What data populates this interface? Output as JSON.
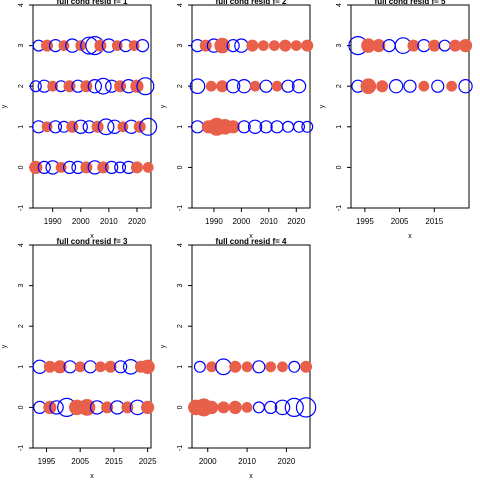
{
  "colors": {
    "positive": "#e8604a",
    "negative": "#0000ff",
    "axis": "#000000"
  },
  "chart_data": [
    {
      "type": "scatter",
      "title": "full cond resid f= 1",
      "xlabel": "x",
      "ylabel": "y",
      "xlim": [
        1983,
        2025
      ],
      "ylim": [
        -1,
        4
      ],
      "xticks": [
        1990,
        2000,
        2010,
        2020
      ],
      "yticks": [
        -1,
        0,
        1,
        2,
        3,
        4
      ],
      "series": [
        {
          "y": 3,
          "x": [
            1985,
            1988,
            1991,
            1994,
            1997,
            2000,
            2003,
            2005,
            2007,
            2010,
            2013,
            2016,
            2019,
            2022
          ],
          "resid": [
            -0.4,
            0.5,
            -0.5,
            0.4,
            -0.6,
            0.4,
            -0.9,
            -1.0,
            0.5,
            -0.6,
            0.4,
            -0.5,
            0.4,
            -0.5
          ]
        },
        {
          "y": 2,
          "x": [
            1984,
            1987,
            1990,
            1993,
            1996,
            1999,
            2002,
            2005,
            2008,
            2011,
            2014,
            2017,
            2020,
            2023
          ],
          "resid": [
            -0.4,
            -0.5,
            0.4,
            -0.4,
            0.5,
            -0.5,
            0.5,
            -0.6,
            -0.8,
            -0.5,
            0.5,
            -0.6,
            0.6,
            -0.9
          ]
        },
        {
          "y": 1,
          "x": [
            1985,
            1988,
            1991,
            1994,
            1997,
            2000,
            2003,
            2006,
            2009,
            2012,
            2015,
            2018,
            2021,
            2024
          ],
          "resid": [
            -0.5,
            0.4,
            -0.5,
            -0.4,
            0.5,
            -0.6,
            -0.5,
            0.5,
            -0.8,
            -0.6,
            0.4,
            -0.6,
            0.5,
            -0.9
          ]
        },
        {
          "y": 0,
          "x": [
            1984,
            1987,
            1990,
            1993,
            1996,
            1999,
            2002,
            2005,
            2008,
            2011,
            2014,
            2017,
            2020,
            2024
          ],
          "resid": [
            0.6,
            -0.5,
            -0.6,
            0.4,
            -0.5,
            -0.5,
            0.5,
            -0.6,
            0.5,
            -0.5,
            -0.4,
            -0.5,
            0.5,
            0.4
          ]
        }
      ]
    },
    {
      "type": "scatter",
      "title": "full cond resid f= 2",
      "xlabel": "x",
      "ylabel": "y",
      "xlim": [
        1982,
        2025
      ],
      "ylim": [
        -1,
        4
      ],
      "xticks": [
        1990,
        2000,
        2010,
        2020
      ],
      "yticks": [
        -1,
        0,
        1,
        2,
        3,
        4
      ],
      "series": [
        {
          "y": 3,
          "x": [
            1984,
            1987,
            1990,
            1993,
            1997,
            2000,
            2004,
            2008,
            2012,
            2016,
            2020,
            2024
          ],
          "resid": [
            -0.5,
            0.5,
            -0.6,
            0.8,
            -0.5,
            -0.6,
            0.5,
            0.4,
            0.4,
            0.5,
            0.4,
            0.5
          ]
        },
        {
          "y": 2,
          "x": [
            1984,
            1989,
            1993,
            1997,
            2001,
            2005,
            2009,
            2013,
            2017,
            2021
          ],
          "resid": [
            -0.7,
            0.4,
            0.5,
            -0.6,
            -0.6,
            0.4,
            -0.5,
            0.4,
            -0.5,
            -0.6
          ]
        },
        {
          "y": 1,
          "x": [
            1984,
            1988,
            1991,
            1994,
            1997,
            2001,
            2005,
            2009,
            2013,
            2017,
            2021,
            2024
          ],
          "resid": [
            -0.5,
            0.6,
            1.0,
            0.8,
            0.6,
            -0.5,
            -0.6,
            -0.5,
            -0.5,
            -0.4,
            -0.4,
            -0.4
          ]
        }
      ]
    },
    {
      "type": "scatter",
      "title": "full cond resid f= 5",
      "xlabel": "x",
      "ylabel": "y",
      "xlim": [
        1991,
        2025
      ],
      "ylim": [
        -1,
        4
      ],
      "xticks": [
        1995,
        2005,
        2015
      ],
      "yticks": [
        -1,
        0,
        1,
        2,
        3,
        4
      ],
      "series": [
        {
          "y": 3,
          "x": [
            1993,
            1996,
            1999,
            2002,
            2006,
            2009,
            2012,
            2015,
            2018,
            2021,
            2024
          ],
          "resid": [
            -1.0,
            0.7,
            0.6,
            -0.5,
            -0.8,
            0.5,
            -0.5,
            0.5,
            -0.4,
            0.5,
            0.6
          ]
        },
        {
          "y": 2,
          "x": [
            1993,
            1996,
            2000,
            2004,
            2008,
            2012,
            2016,
            2020,
            2024
          ],
          "resid": [
            -0.5,
            0.8,
            0.5,
            -0.6,
            -0.5,
            0.4,
            -0.5,
            0.4,
            -0.6
          ]
        }
      ]
    },
    {
      "type": "scatter",
      "title": "full cond resid f= 3",
      "xlabel": "x",
      "ylabel": "y",
      "xlim": [
        1991,
        2026
      ],
      "ylim": [
        -1,
        4
      ],
      "xticks": [
        1995,
        2005,
        2015,
        2025
      ],
      "yticks": [
        -1,
        0,
        1,
        2,
        3,
        4
      ],
      "series": [
        {
          "y": 1,
          "x": [
            1993,
            1996,
            1999,
            2002,
            2005,
            2008,
            2011,
            2014,
            2017,
            2020,
            2023,
            2025
          ],
          "resid": [
            -0.6,
            0.5,
            0.6,
            -0.5,
            0.4,
            -0.5,
            0.4,
            0.5,
            -0.5,
            -0.7,
            0.5,
            0.7
          ]
        },
        {
          "y": 0,
          "x": [
            1993,
            1996,
            1998,
            2001,
            2004,
            2007,
            2010,
            2013,
            2016,
            2019,
            2022,
            2025
          ],
          "resid": [
            -0.5,
            0.6,
            -0.6,
            -1.0,
            0.8,
            0.9,
            -0.6,
            0.5,
            -0.6,
            0.5,
            -0.7,
            0.6
          ]
        }
      ]
    },
    {
      "type": "scatter",
      "title": "full cond resid f= 4",
      "xlabel": "x",
      "ylabel": "y",
      "xlim": [
        1996,
        2026
      ],
      "ylim": [
        -1,
        4
      ],
      "xticks": [
        2000,
        2010,
        2020
      ],
      "yticks": [
        -1,
        0,
        1,
        2,
        3,
        4
      ],
      "series": [
        {
          "y": 1,
          "x": [
            1998,
            2001,
            2004,
            2007,
            2010,
            2013,
            2016,
            2019,
            2022,
            2025
          ],
          "resid": [
            -0.4,
            0.4,
            -0.8,
            0.5,
            0.4,
            -0.5,
            0.4,
            0.4,
            -0.4,
            0.5
          ]
        },
        {
          "y": 0,
          "x": [
            1997,
            1999,
            2001,
            2004,
            2007,
            2010,
            2013,
            2016,
            2019,
            2022,
            2025
          ],
          "resid": [
            0.8,
            1.0,
            0.6,
            0.5,
            0.6,
            0.4,
            -0.4,
            -0.5,
            -0.7,
            -1.0,
            -1.1
          ]
        }
      ]
    }
  ]
}
